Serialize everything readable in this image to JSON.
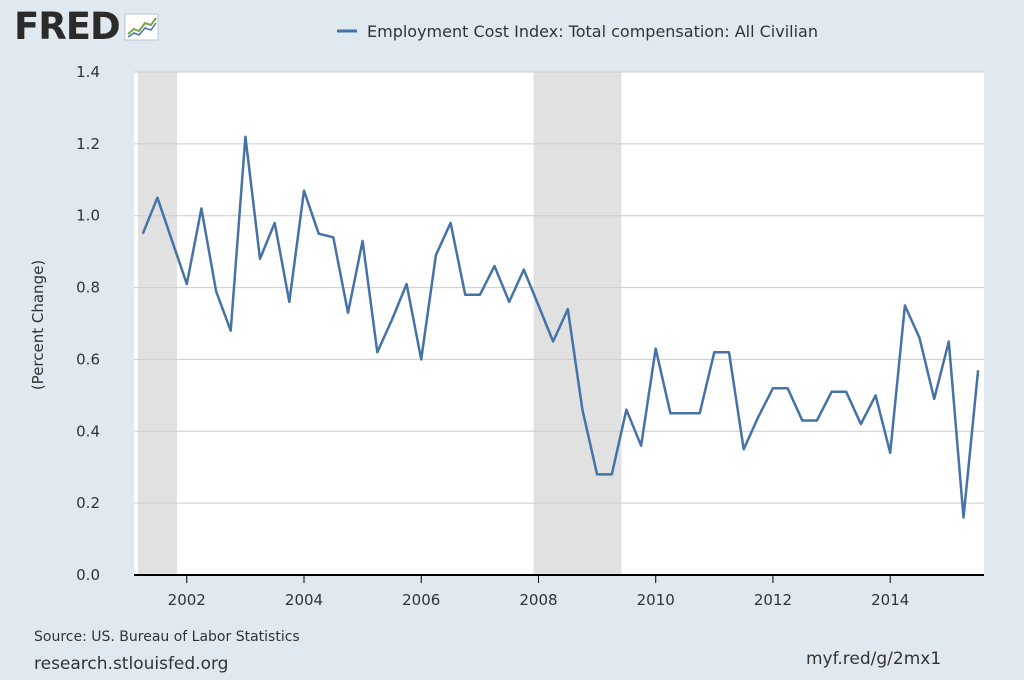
{
  "brand": {
    "name": "FRED",
    "icon": "chart-line-icon"
  },
  "legend": {
    "label": "Employment Cost Index: Total compensation: All Civilian",
    "color": "#4572a7"
  },
  "footer": {
    "source": "Source: US. Bureau of Labor Statistics",
    "site": "research.stlouisfed.org",
    "short_link": "myf.red/g/2mx1"
  },
  "colors": {
    "background": "#e1e9f0",
    "plot": "#ffffff",
    "recession": "#e1e1e1",
    "line": "#4572a7",
    "grid": "#cccccc"
  },
  "chart_data": {
    "type": "line",
    "title": "",
    "xlabel": "",
    "ylabel": "(Percent Change)",
    "xlim": [
      2001.1,
      2015.6
    ],
    "ylim": [
      0,
      1.4
    ],
    "x_ticks": [
      2002,
      2004,
      2006,
      2008,
      2010,
      2012,
      2014
    ],
    "x_tick_labels": [
      "2002",
      "2004",
      "2006",
      "2008",
      "2010",
      "2012",
      "2014"
    ],
    "y_ticks": [
      0,
      0.2,
      0.4,
      0.6,
      0.8,
      1.0,
      1.2,
      1.4
    ],
    "y_tick_labels": [
      "0.0",
      "0.2",
      "0.4",
      "0.6",
      "0.8",
      "1.0",
      "1.2",
      "1.4"
    ],
    "grid": true,
    "legend_position": "top",
    "recessions": [
      {
        "start": "2001-03",
        "end": "2001-11"
      },
      {
        "start": "2007-12",
        "end": "2009-06"
      }
    ],
    "series": [
      {
        "name": "Employment Cost Index: Total compensation: All Civilian",
        "x": [
          "2001-Q2",
          "2001-Q3",
          "2001-Q4",
          "2002-Q1",
          "2002-Q2",
          "2002-Q3",
          "2002-Q4",
          "2003-Q1",
          "2003-Q2",
          "2003-Q3",
          "2003-Q4",
          "2004-Q1",
          "2004-Q2",
          "2004-Q3",
          "2004-Q4",
          "2005-Q1",
          "2005-Q2",
          "2005-Q3",
          "2005-Q4",
          "2006-Q1",
          "2006-Q2",
          "2006-Q3",
          "2006-Q4",
          "2007-Q1",
          "2007-Q2",
          "2007-Q3",
          "2007-Q4",
          "2008-Q1",
          "2008-Q2",
          "2008-Q3",
          "2008-Q4",
          "2009-Q1",
          "2009-Q2",
          "2009-Q3",
          "2009-Q4",
          "2010-Q1",
          "2010-Q2",
          "2010-Q3",
          "2010-Q4",
          "2011-Q1",
          "2011-Q2",
          "2011-Q3",
          "2011-Q4",
          "2012-Q1",
          "2012-Q2",
          "2012-Q3",
          "2012-Q4",
          "2013-Q1",
          "2013-Q2",
          "2013-Q3",
          "2013-Q4",
          "2014-Q1",
          "2014-Q2",
          "2014-Q3",
          "2014-Q4",
          "2015-Q1",
          "2015-Q2",
          "2015-Q3"
        ],
        "values": [
          0.95,
          1.05,
          0.93,
          0.81,
          1.02,
          0.79,
          0.68,
          1.22,
          0.88,
          0.98,
          0.76,
          1.07,
          0.95,
          0.94,
          0.73,
          0.93,
          0.62,
          0.71,
          0.81,
          0.6,
          0.89,
          0.98,
          0.78,
          0.78,
          0.86,
          0.76,
          0.85,
          0.75,
          0.65,
          0.74,
          0.46,
          0.28,
          0.28,
          0.46,
          0.36,
          0.63,
          0.45,
          0.45,
          0.45,
          0.62,
          0.62,
          0.35,
          0.44,
          0.52,
          0.52,
          0.43,
          0.43,
          0.51,
          0.51,
          0.42,
          0.5,
          0.34,
          0.75,
          0.66,
          0.49,
          0.65,
          0.16,
          0.57
        ]
      }
    ]
  }
}
